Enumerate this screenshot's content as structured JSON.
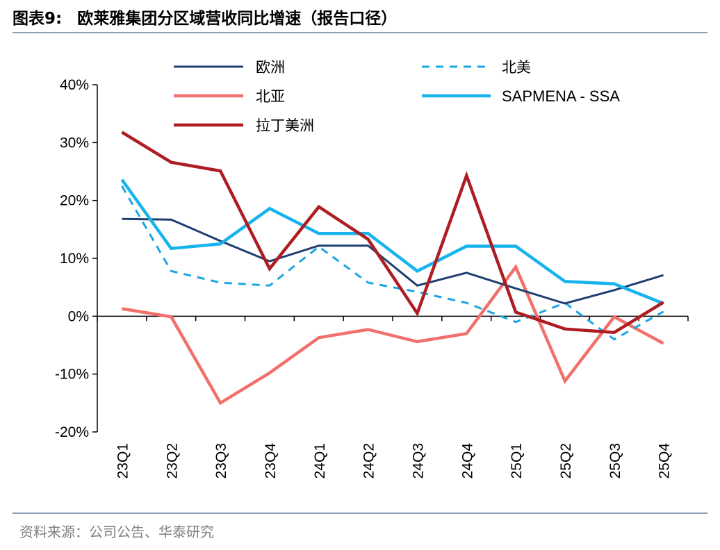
{
  "header": {
    "figure_number": "图表9:",
    "title": "欧莱雅集团分区域营收同比增速（报告口径）"
  },
  "footer": {
    "source": "资料来源：公司公告、华泰研究"
  },
  "chart_data": {
    "type": "line",
    "title": "欧莱雅集团分区域营收同比增速（报告口径）",
    "xlabel": "",
    "ylabel": "",
    "ylim": [
      -0.2,
      0.4
    ],
    "y_ticks": [
      -0.2,
      -0.1,
      0,
      0.1,
      0.2,
      0.3,
      0.4
    ],
    "y_tick_labels": [
      "-20%",
      "-10%",
      "0%",
      "10%",
      "20%",
      "30%",
      "40%"
    ],
    "categories": [
      "23Q1",
      "23Q2",
      "23Q3",
      "23Q4",
      "24Q1",
      "24Q2",
      "24Q3",
      "24Q4",
      "25Q1",
      "25Q2",
      "25Q3",
      "25Q4"
    ],
    "legend_position": "top",
    "series": [
      {
        "name": "欧洲",
        "color": "#1f3e72",
        "style": "solid",
        "width": "thin",
        "values": [
          0.168,
          0.167,
          0.13,
          0.095,
          0.122,
          0.122,
          0.053,
          0.075,
          0.048,
          0.022,
          0.045,
          0.071
        ]
      },
      {
        "name": "北美",
        "color": "#1aa5e3",
        "style": "dashed",
        "width": "thin",
        "values": [
          0.225,
          0.078,
          0.058,
          0.053,
          0.12,
          0.058,
          0.042,
          0.023,
          -0.01,
          0.023,
          -0.04,
          0.008
        ]
      },
      {
        "name": "北亚",
        "color": "#f2706b",
        "style": "solid",
        "width": "thick",
        "values": [
          0.013,
          -0.001,
          -0.15,
          -0.098,
          -0.037,
          -0.023,
          -0.044,
          -0.03,
          0.085,
          -0.112,
          -0.001,
          -0.047
        ]
      },
      {
        "name": "SAPMENA - SSA",
        "color": "#16b3ec",
        "style": "solid",
        "width": "thick",
        "values": [
          0.236,
          0.117,
          0.125,
          0.186,
          0.143,
          0.143,
          0.078,
          0.121,
          0.121,
          0.06,
          0.056,
          0.022
        ]
      },
      {
        "name": "拉丁美洲",
        "color": "#ad1d22",
        "style": "solid",
        "width": "thick",
        "values": [
          0.318,
          0.266,
          0.251,
          0.082,
          0.189,
          0.133,
          0.005,
          0.243,
          0.007,
          -0.022,
          -0.028,
          0.024
        ]
      }
    ]
  }
}
